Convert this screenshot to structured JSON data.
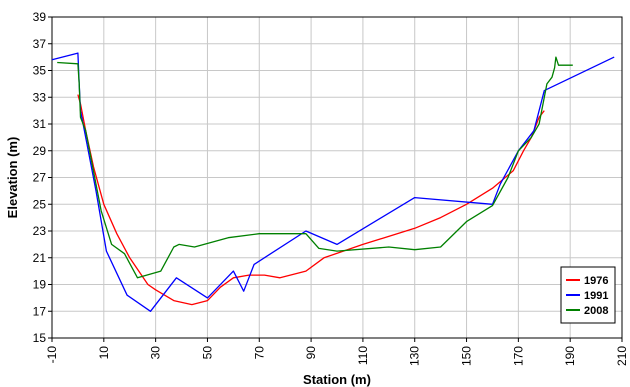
{
  "chart_data": {
    "type": "line",
    "title": "",
    "xlabel": "Station (m)",
    "ylabel": "Elevation (m)",
    "xlim": [
      -10,
      210
    ],
    "ylim": [
      15,
      39
    ],
    "xticks": [
      -10,
      10,
      30,
      50,
      70,
      90,
      110,
      130,
      150,
      170,
      190,
      210
    ],
    "yticks": [
      15,
      17,
      19,
      21,
      23,
      25,
      27,
      29,
      31,
      33,
      35,
      37,
      39
    ],
    "grid": true,
    "legend_position": "bottom-right",
    "series": [
      {
        "name": "1976",
        "color": "#ff0000",
        "points": [
          [
            0,
            33.2
          ],
          [
            1,
            32.5
          ],
          [
            3,
            30.5
          ],
          [
            6,
            27.8
          ],
          [
            10,
            25
          ],
          [
            15,
            22.8
          ],
          [
            20,
            21
          ],
          [
            27,
            19
          ],
          [
            30,
            18.6
          ],
          [
            37,
            17.8
          ],
          [
            44,
            17.5
          ],
          [
            50,
            17.8
          ],
          [
            55,
            18.8
          ],
          [
            60,
            19.5
          ],
          [
            66,
            19.7
          ],
          [
            72,
            19.7
          ],
          [
            78,
            19.5
          ],
          [
            88,
            20
          ],
          [
            95,
            21
          ],
          [
            110,
            22
          ],
          [
            130,
            23.2
          ],
          [
            140,
            24
          ],
          [
            150,
            25
          ],
          [
            160,
            26.2
          ],
          [
            168,
            27.5
          ],
          [
            172,
            29
          ],
          [
            175,
            30
          ],
          [
            178,
            31.5
          ],
          [
            180,
            32
          ]
        ]
      },
      {
        "name": "1991",
        "color": "#0000ff",
        "points": [
          [
            -10,
            35.8
          ],
          [
            0,
            36.3
          ],
          [
            0.5,
            34
          ],
          [
            1,
            32
          ],
          [
            3,
            30
          ],
          [
            7,
            26
          ],
          [
            11,
            21.5
          ],
          [
            19,
            18.2
          ],
          [
            28,
            17
          ],
          [
            38,
            19.5
          ],
          [
            50,
            18
          ],
          [
            60,
            20
          ],
          [
            64,
            18.5
          ],
          [
            68,
            20.5
          ],
          [
            88,
            23
          ],
          [
            100,
            22
          ],
          [
            130,
            25.5
          ],
          [
            160,
            25
          ],
          [
            163,
            26.5
          ],
          [
            170,
            29
          ],
          [
            176,
            30.5
          ],
          [
            180,
            33.5
          ],
          [
            207,
            36
          ]
        ]
      },
      {
        "name": "2008",
        "color": "#008000",
        "points": [
          [
            -8,
            35.6
          ],
          [
            0,
            35.5
          ],
          [
            0.5,
            34
          ],
          [
            1,
            31.5
          ],
          [
            3,
            30.5
          ],
          [
            7,
            26.5
          ],
          [
            9,
            24.5
          ],
          [
            13,
            22
          ],
          [
            18,
            21.3
          ],
          [
            23,
            19.5
          ],
          [
            32,
            20
          ],
          [
            37,
            21.8
          ],
          [
            39,
            22
          ],
          [
            45,
            21.8
          ],
          [
            58,
            22.5
          ],
          [
            70,
            22.8
          ],
          [
            88,
            22.8
          ],
          [
            93,
            21.7
          ],
          [
            100,
            21.5
          ],
          [
            120,
            21.8
          ],
          [
            130,
            21.6
          ],
          [
            140,
            21.8
          ],
          [
            150,
            23.7
          ],
          [
            160,
            24.9
          ],
          [
            166,
            27
          ],
          [
            170,
            29
          ],
          [
            175,
            30
          ],
          [
            178,
            31
          ],
          [
            181,
            34
          ],
          [
            183,
            34.5
          ],
          [
            184,
            35.2
          ],
          [
            184.5,
            36
          ],
          [
            185.5,
            35.4
          ],
          [
            191,
            35.4
          ]
        ]
      }
    ]
  }
}
